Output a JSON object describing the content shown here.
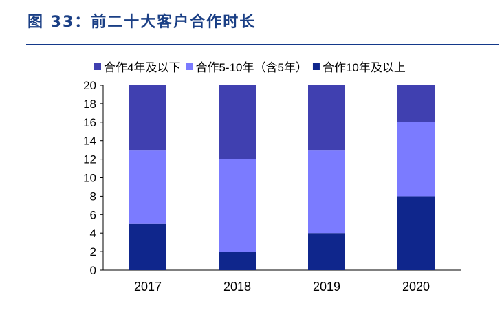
{
  "title": "图 33：前二十大客户合作时长",
  "chart_data": {
    "type": "bar",
    "stacked": true,
    "categories": [
      "2017",
      "2018",
      "2019",
      "2020"
    ],
    "series": [
      {
        "name": "合作10年及以上",
        "values": [
          5,
          2,
          4,
          8
        ],
        "color": "#0f268c"
      },
      {
        "name": "合作5-10年（含5年）",
        "values": [
          8,
          10,
          9,
          8
        ],
        "color": "#7b7bff"
      },
      {
        "name": "合作4年及以下",
        "values": [
          7,
          8,
          7,
          4
        ],
        "color": "#4040b0"
      }
    ],
    "legend_order": [
      2,
      1,
      0
    ],
    "ylim": [
      0,
      20
    ],
    "yticks": [
      0,
      2,
      4,
      6,
      8,
      10,
      12,
      14,
      16,
      18,
      20
    ],
    "grid": false,
    "legend": "top"
  }
}
